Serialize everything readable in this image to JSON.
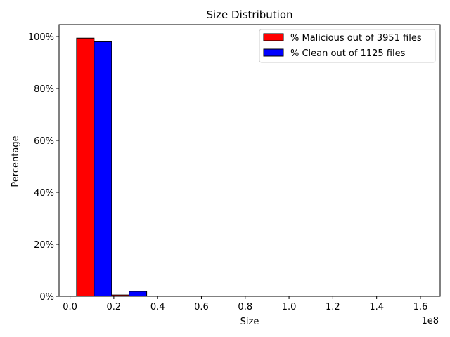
{
  "chart_data": {
    "type": "histogram",
    "title": "Size Distribution",
    "xlabel": "Size",
    "ylabel": "Percentage",
    "x_offset_label": "1e8",
    "bins": [
      0.03,
      0.19,
      0.35,
      0.51,
      0.67,
      0.83,
      0.99,
      1.15,
      1.31,
      1.47,
      1.63
    ],
    "series": [
      {
        "name": "% Malicious out of 3951 files",
        "color": "#ff0000",
        "values": [
          99.4,
          0.5,
          0.05,
          0,
          0,
          0,
          0,
          0,
          0,
          0.05
        ]
      },
      {
        "name": "% Clean out of 1125 files",
        "color": "#0000ff",
        "values": [
          98.0,
          1.9,
          0.1,
          0,
          0,
          0,
          0,
          0,
          0,
          0
        ]
      }
    ],
    "xlim": [
      -0.05,
      1.69
    ],
    "ylim": [
      0,
      104.6
    ],
    "xticks": [
      {
        "value": 0,
        "label": "0.0"
      },
      {
        "value": 0.2,
        "label": "0.2"
      },
      {
        "value": 0.4,
        "label": "0.4"
      },
      {
        "value": 0.6,
        "label": "0.6"
      },
      {
        "value": 0.8,
        "label": "0.8"
      },
      {
        "value": 1.0,
        "label": "1.0"
      },
      {
        "value": 1.2,
        "label": "1.2"
      },
      {
        "value": 1.4,
        "label": "1.4"
      },
      {
        "value": 1.6,
        "label": "1.6"
      }
    ],
    "yticks": [
      {
        "value": 0,
        "label": "0%"
      },
      {
        "value": 20,
        "label": "20%"
      },
      {
        "value": 40,
        "label": "40%"
      },
      {
        "value": 60,
        "label": "60%"
      },
      {
        "value": 80,
        "label": "80%"
      },
      {
        "value": 100,
        "label": "100%"
      }
    ],
    "legend": "upper right"
  }
}
